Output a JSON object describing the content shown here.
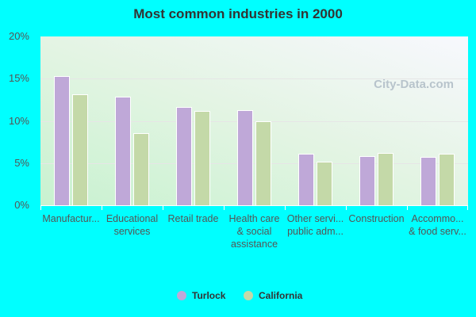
{
  "chart_data": {
    "type": "bar",
    "title": "Most common industries in 2000",
    "categories": [
      "Manufactur...",
      "Educational\nservices",
      "Retail trade",
      "Health care\n& social\nassistance",
      "Other servi...\npublic adm...",
      "Construction",
      "Accommo...\n& food serv..."
    ],
    "series": [
      {
        "name": "Turlock",
        "color": "#bfa8d8",
        "values": [
          15.3,
          12.9,
          11.6,
          11.3,
          6.1,
          5.8,
          5.7
        ]
      },
      {
        "name": "California",
        "color": "#c4d9a8",
        "values": [
          13.1,
          8.5,
          11.2,
          10.0,
          5.2,
          6.2,
          6.1
        ]
      }
    ],
    "yticks": [
      "0%",
      "5%",
      "10%",
      "15%",
      "20%"
    ],
    "ylim": [
      0,
      20
    ],
    "grid": true,
    "legend": "bottom"
  },
  "watermark": "City-Data.com"
}
